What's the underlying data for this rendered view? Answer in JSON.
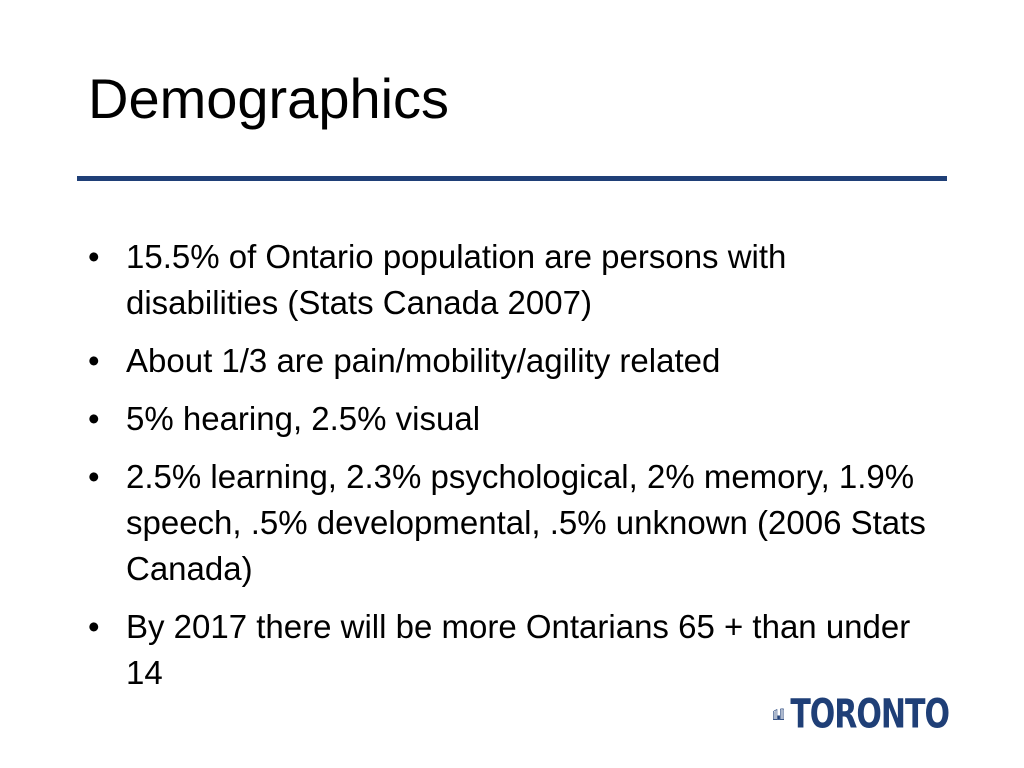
{
  "slide": {
    "title": "Demographics",
    "bullets": [
      {
        "text": "15.5% of Ontario population are persons with disabilities (Stats Canada 2007)"
      },
      {
        "text": "About 1/3 are pain/mobility/agility related"
      },
      {
        "text": "5% hearing, 2.5% visual"
      },
      {
        "text": "2.5% learning, 2.3% psychological, 2% memory, 1.9% speech, .5% developmental, .5% unknown (2006 Stats Canada)"
      },
      {
        "text": "By 2017 there will be more Ontarians 65 + than under 14"
      }
    ],
    "bullet_glyph": "•",
    "logo": {
      "text": "TORONTO",
      "icon": "city-hall-towers-icon"
    },
    "colors": {
      "rule": "#1f3f77",
      "logo": "#1f3f77",
      "text": "#000000",
      "background": "#ffffff"
    }
  }
}
